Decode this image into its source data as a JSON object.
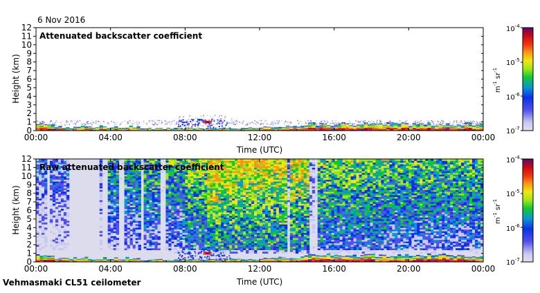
{
  "header": {
    "date": "6 Nov 2016",
    "instrument": "Vehmasmaki CL51 ceilometer"
  },
  "chart_data": [
    {
      "type": "heatmap",
      "title": "Attenuated backscatter coefficient",
      "xlabel": "Time (UTC)",
      "ylabel": "Height (km)",
      "xlim": [
        "00:00",
        "00:00"
      ],
      "x_ticks": [
        "00:00",
        "04:00",
        "08:00",
        "12:00",
        "16:00",
        "20:00",
        "00:00"
      ],
      "ylim": [
        0,
        12
      ],
      "y_ticks": [
        "0",
        "1",
        "2",
        "3",
        "4",
        "5",
        "6",
        "7",
        "8",
        "9",
        "10",
        "11",
        "12"
      ],
      "colorbar": {
        "scale": "log",
        "range": [
          "1e-7",
          "1e-4"
        ],
        "ticks": [
          {
            "base": "10",
            "exp": "-4"
          },
          {
            "base": "10",
            "exp": "-5"
          },
          {
            "base": "10",
            "exp": "-6"
          },
          {
            "base": "10",
            "exp": "-7"
          }
        ],
        "label_base_1": "m",
        "label_exp_1": "-1",
        "label_base_2": " sr",
        "label_exp_2": "-1"
      },
      "features": [
        {
          "name": "boundary-layer aerosol",
          "x_range_h": [
            0,
            24
          ],
          "height_km": [
            0,
            0.9
          ]
        },
        {
          "name": "low cloud",
          "x_range_h": [
            7.6,
            10.4
          ],
          "height_km": [
            0.3,
            1.4
          ]
        }
      ]
    },
    {
      "type": "heatmap",
      "title": "Raw attenuated backscatter coefficient",
      "xlabel": "Time (UTC)",
      "ylabel": "Height (km)",
      "xlim": [
        "00:00",
        "00:00"
      ],
      "x_ticks": [
        "00:00",
        "04:00",
        "08:00",
        "12:00",
        "16:00",
        "20:00",
        "00:00"
      ],
      "ylim": [
        0,
        12
      ],
      "y_ticks": [
        "0",
        "1",
        "2",
        "3",
        "4",
        "5",
        "6",
        "7",
        "8",
        "9",
        "10",
        "11",
        "12"
      ],
      "colorbar": {
        "scale": "log",
        "range": [
          "1e-7",
          "1e-4"
        ],
        "ticks": [
          {
            "base": "10",
            "exp": "-4"
          },
          {
            "base": "10",
            "exp": "-5"
          },
          {
            "base": "10",
            "exp": "-6"
          },
          {
            "base": "10",
            "exp": "-7"
          }
        ],
        "label_base_1": "m",
        "label_exp_1": "-1",
        "label_base_2": " sr",
        "label_exp_2": "-1"
      },
      "features": [
        {
          "name": "noise field",
          "x_range_h": [
            0,
            24
          ],
          "height_km": [
            0,
            12
          ]
        },
        {
          "name": "boundary-layer aerosol",
          "x_range_h": [
            0,
            24
          ],
          "height_km": [
            0,
            0.9
          ]
        }
      ]
    }
  ],
  "colormap": [
    "#dcdcf0",
    "#c8c8f0",
    "#5050e8",
    "#0a32e6",
    "#0a96d2",
    "#14c832",
    "#9fe61e",
    "#f0e614",
    "#fa9614",
    "#f03214",
    "#c80a14",
    "#8c0a78",
    "#5a0a6e"
  ]
}
